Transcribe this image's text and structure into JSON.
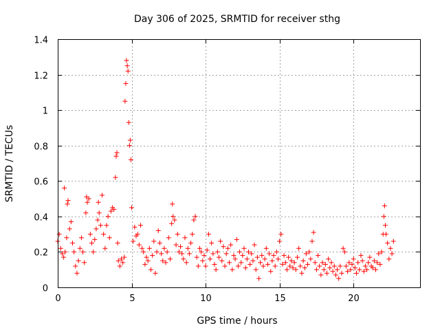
{
  "chart_data": {
    "type": "scatter",
    "title": "Day 306 of 2025, SRMTID for receiver sthg",
    "xlabel": "GPS time / hours",
    "ylabel": "SRMTID / TECUs",
    "xlim": [
      0,
      24.5
    ],
    "ylim": [
      0,
      1.4
    ],
    "xticks": [
      0,
      5,
      10,
      15,
      20
    ],
    "xtick_labels": [
      "0",
      "5",
      "10",
      "15",
      "20"
    ],
    "yticks": [
      0,
      0.2,
      0.4,
      0.6,
      0.8,
      1.0,
      1.2,
      1.4
    ],
    "ytick_labels": [
      "0",
      "0.2",
      "0.4",
      "0.6",
      "0.8",
      "1",
      "1.2",
      "1.4"
    ],
    "grid": true,
    "marker": "+",
    "color": "#ff0000",
    "series": [
      {
        "name": "SRMTID",
        "points": [
          [
            0.0,
            0.26
          ],
          [
            0.1,
            0.3
          ],
          [
            0.2,
            0.22
          ],
          [
            0.3,
            0.19
          ],
          [
            0.4,
            0.17
          ],
          [
            0.45,
            0.56
          ],
          [
            0.5,
            0.2
          ],
          [
            0.6,
            0.28
          ],
          [
            0.65,
            0.47
          ],
          [
            0.7,
            0.49
          ],
          [
            0.8,
            0.33
          ],
          [
            0.9,
            0.37
          ],
          [
            1.0,
            0.25
          ],
          [
            1.1,
            0.2
          ],
          [
            1.2,
            0.12
          ],
          [
            1.3,
            0.08
          ],
          [
            1.4,
            0.15
          ],
          [
            1.5,
            0.22
          ],
          [
            1.6,
            0.28
          ],
          [
            1.7,
            0.2
          ],
          [
            1.8,
            0.14
          ],
          [
            1.9,
            0.42
          ],
          [
            1.95,
            0.51
          ],
          [
            2.0,
            0.48
          ],
          [
            2.1,
            0.5
          ],
          [
            2.2,
            0.3
          ],
          [
            2.3,
            0.25
          ],
          [
            2.4,
            0.2
          ],
          [
            2.5,
            0.27
          ],
          [
            2.6,
            0.33
          ],
          [
            2.7,
            0.38
          ],
          [
            2.75,
            0.48
          ],
          [
            2.8,
            0.42
          ],
          [
            2.9,
            0.35
          ],
          [
            3.0,
            0.52
          ],
          [
            3.1,
            0.3
          ],
          [
            3.2,
            0.22
          ],
          [
            3.3,
            0.35
          ],
          [
            3.4,
            0.4
          ],
          [
            3.5,
            0.28
          ],
          [
            3.6,
            0.43
          ],
          [
            3.7,
            0.45
          ],
          [
            3.8,
            0.44
          ],
          [
            3.9,
            0.62
          ],
          [
            3.95,
            0.74
          ],
          [
            4.0,
            0.76
          ],
          [
            4.05,
            0.25
          ],
          [
            4.1,
            0.15
          ],
          [
            4.2,
            0.12
          ],
          [
            4.3,
            0.16
          ],
          [
            4.4,
            0.14
          ],
          [
            4.5,
            0.17
          ],
          [
            4.55,
            1.05
          ],
          [
            4.6,
            1.15
          ],
          [
            4.65,
            1.28
          ],
          [
            4.7,
            1.25
          ],
          [
            4.75,
            1.22
          ],
          [
            4.8,
            0.93
          ],
          [
            4.85,
            0.8
          ],
          [
            4.9,
            0.83
          ],
          [
            4.95,
            0.72
          ],
          [
            5.0,
            0.45
          ],
          [
            5.1,
            0.26
          ],
          [
            5.2,
            0.34
          ],
          [
            5.3,
            0.29
          ],
          [
            5.4,
            0.3
          ],
          [
            5.5,
            0.24
          ],
          [
            5.6,
            0.35
          ],
          [
            5.7,
            0.22
          ],
          [
            5.8,
            0.2
          ],
          [
            5.9,
            0.13
          ],
          [
            6.0,
            0.17
          ],
          [
            6.1,
            0.15
          ],
          [
            6.2,
            0.22
          ],
          [
            6.3,
            0.1
          ],
          [
            6.4,
            0.18
          ],
          [
            6.5,
            0.26
          ],
          [
            6.6,
            0.08
          ],
          [
            6.7,
            0.2
          ],
          [
            6.8,
            0.32
          ],
          [
            6.9,
            0.25
          ],
          [
            7.0,
            0.19
          ],
          [
            7.1,
            0.15
          ],
          [
            7.2,
            0.22
          ],
          [
            7.3,
            0.14
          ],
          [
            7.4,
            0.2
          ],
          [
            7.5,
            0.28
          ],
          [
            7.6,
            0.16
          ],
          [
            7.7,
            0.36
          ],
          [
            7.75,
            0.47
          ],
          [
            7.8,
            0.4
          ],
          [
            7.9,
            0.38
          ],
          [
            8.0,
            0.24
          ],
          [
            8.1,
            0.3
          ],
          [
            8.2,
            0.2
          ],
          [
            8.3,
            0.23
          ],
          [
            8.4,
            0.19
          ],
          [
            8.5,
            0.16
          ],
          [
            8.6,
            0.28
          ],
          [
            8.7,
            0.14
          ],
          [
            8.8,
            0.22
          ],
          [
            8.9,
            0.19
          ],
          [
            9.0,
            0.25
          ],
          [
            9.1,
            0.3
          ],
          [
            9.2,
            0.38
          ],
          [
            9.3,
            0.4
          ],
          [
            9.4,
            0.17
          ],
          [
            9.5,
            0.12
          ],
          [
            9.6,
            0.22
          ],
          [
            9.7,
            0.2
          ],
          [
            9.8,
            0.15
          ],
          [
            9.9,
            0.18
          ],
          [
            10.0,
            0.12
          ],
          [
            10.1,
            0.21
          ],
          [
            10.2,
            0.3
          ],
          [
            10.3,
            0.16
          ],
          [
            10.4,
            0.25
          ],
          [
            10.5,
            0.19
          ],
          [
            10.6,
            0.13
          ],
          [
            10.7,
            0.1
          ],
          [
            10.8,
            0.2
          ],
          [
            10.9,
            0.17
          ],
          [
            11.0,
            0.26
          ],
          [
            11.1,
            0.15
          ],
          [
            11.2,
            0.23
          ],
          [
            11.3,
            0.12
          ],
          [
            11.4,
            0.19
          ],
          [
            11.5,
            0.22
          ],
          [
            11.6,
            0.14
          ],
          [
            11.7,
            0.24
          ],
          [
            11.8,
            0.1
          ],
          [
            11.9,
            0.18
          ],
          [
            12.0,
            0.16
          ],
          [
            12.1,
            0.27
          ],
          [
            12.2,
            0.12
          ],
          [
            12.3,
            0.2
          ],
          [
            12.4,
            0.14
          ],
          [
            12.5,
            0.18
          ],
          [
            12.6,
            0.22
          ],
          [
            12.7,
            0.11
          ],
          [
            12.8,
            0.16
          ],
          [
            12.9,
            0.2
          ],
          [
            13.0,
            0.13
          ],
          [
            13.1,
            0.19
          ],
          [
            13.2,
            0.15
          ],
          [
            13.3,
            0.24
          ],
          [
            13.4,
            0.1
          ],
          [
            13.5,
            0.17
          ],
          [
            13.6,
            0.05
          ],
          [
            13.7,
            0.14
          ],
          [
            13.8,
            0.18
          ],
          [
            13.9,
            0.12
          ],
          [
            14.0,
            0.16
          ],
          [
            14.1,
            0.22
          ],
          [
            14.2,
            0.13
          ],
          [
            14.3,
            0.19
          ],
          [
            14.4,
            0.09
          ],
          [
            14.5,
            0.15
          ],
          [
            14.6,
            0.18
          ],
          [
            14.7,
            0.12
          ],
          [
            14.8,
            0.2
          ],
          [
            14.9,
            0.16
          ],
          [
            15.0,
            0.26
          ],
          [
            15.1,
            0.3
          ],
          [
            15.2,
            0.13
          ],
          [
            15.3,
            0.18
          ],
          [
            15.4,
            0.14
          ],
          [
            15.5,
            0.1
          ],
          [
            15.6,
            0.17
          ],
          [
            15.7,
            0.12
          ],
          [
            15.8,
            0.15
          ],
          [
            15.9,
            0.11
          ],
          [
            16.0,
            0.14
          ],
          [
            16.1,
            0.1
          ],
          [
            16.2,
            0.17
          ],
          [
            16.3,
            0.22
          ],
          [
            16.4,
            0.12
          ],
          [
            16.5,
            0.08
          ],
          [
            16.6,
            0.15
          ],
          [
            16.7,
            0.11
          ],
          [
            16.8,
            0.19
          ],
          [
            16.9,
            0.13
          ],
          [
            17.0,
            0.2
          ],
          [
            17.1,
            0.16
          ],
          [
            17.2,
            0.26
          ],
          [
            17.3,
            0.31
          ],
          [
            17.4,
            0.14
          ],
          [
            17.5,
            0.1
          ],
          [
            17.6,
            0.18
          ],
          [
            17.7,
            0.12
          ],
          [
            17.8,
            0.07
          ],
          [
            17.9,
            0.14
          ],
          [
            18.0,
            0.1
          ],
          [
            18.1,
            0.13
          ],
          [
            18.2,
            0.08
          ],
          [
            18.3,
            0.16
          ],
          [
            18.4,
            0.11
          ],
          [
            18.5,
            0.14
          ],
          [
            18.6,
            0.09
          ],
          [
            18.7,
            0.12
          ],
          [
            18.8,
            0.07
          ],
          [
            18.9,
            0.1
          ],
          [
            19.0,
            0.05
          ],
          [
            19.1,
            0.12
          ],
          [
            19.2,
            0.08
          ],
          [
            19.3,
            0.22
          ],
          [
            19.4,
            0.2
          ],
          [
            19.5,
            0.12
          ],
          [
            19.6,
            0.09
          ],
          [
            19.7,
            0.14
          ],
          [
            19.8,
            0.1
          ],
          [
            19.9,
            0.13
          ],
          [
            20.0,
            0.16
          ],
          [
            20.1,
            0.11
          ],
          [
            20.2,
            0.08
          ],
          [
            20.3,
            0.14
          ],
          [
            20.4,
            0.1
          ],
          [
            20.5,
            0.18
          ],
          [
            20.6,
            0.15
          ],
          [
            20.7,
            0.09
          ],
          [
            20.8,
            0.12
          ],
          [
            20.9,
            0.1
          ],
          [
            21.0,
            0.14
          ],
          [
            21.1,
            0.17
          ],
          [
            21.2,
            0.12
          ],
          [
            21.3,
            0.11
          ],
          [
            21.4,
            0.15
          ],
          [
            21.5,
            0.1
          ],
          [
            21.6,
            0.14
          ],
          [
            21.7,
            0.19
          ],
          [
            21.8,
            0.13
          ],
          [
            21.9,
            0.2
          ],
          [
            22.0,
            0.3
          ],
          [
            22.05,
            0.4
          ],
          [
            22.1,
            0.46
          ],
          [
            22.15,
            0.35
          ],
          [
            22.2,
            0.3
          ],
          [
            22.3,
            0.25
          ],
          [
            22.4,
            0.16
          ],
          [
            22.5,
            0.22
          ],
          [
            22.6,
            0.19
          ],
          [
            22.7,
            0.26
          ]
        ]
      }
    ]
  }
}
